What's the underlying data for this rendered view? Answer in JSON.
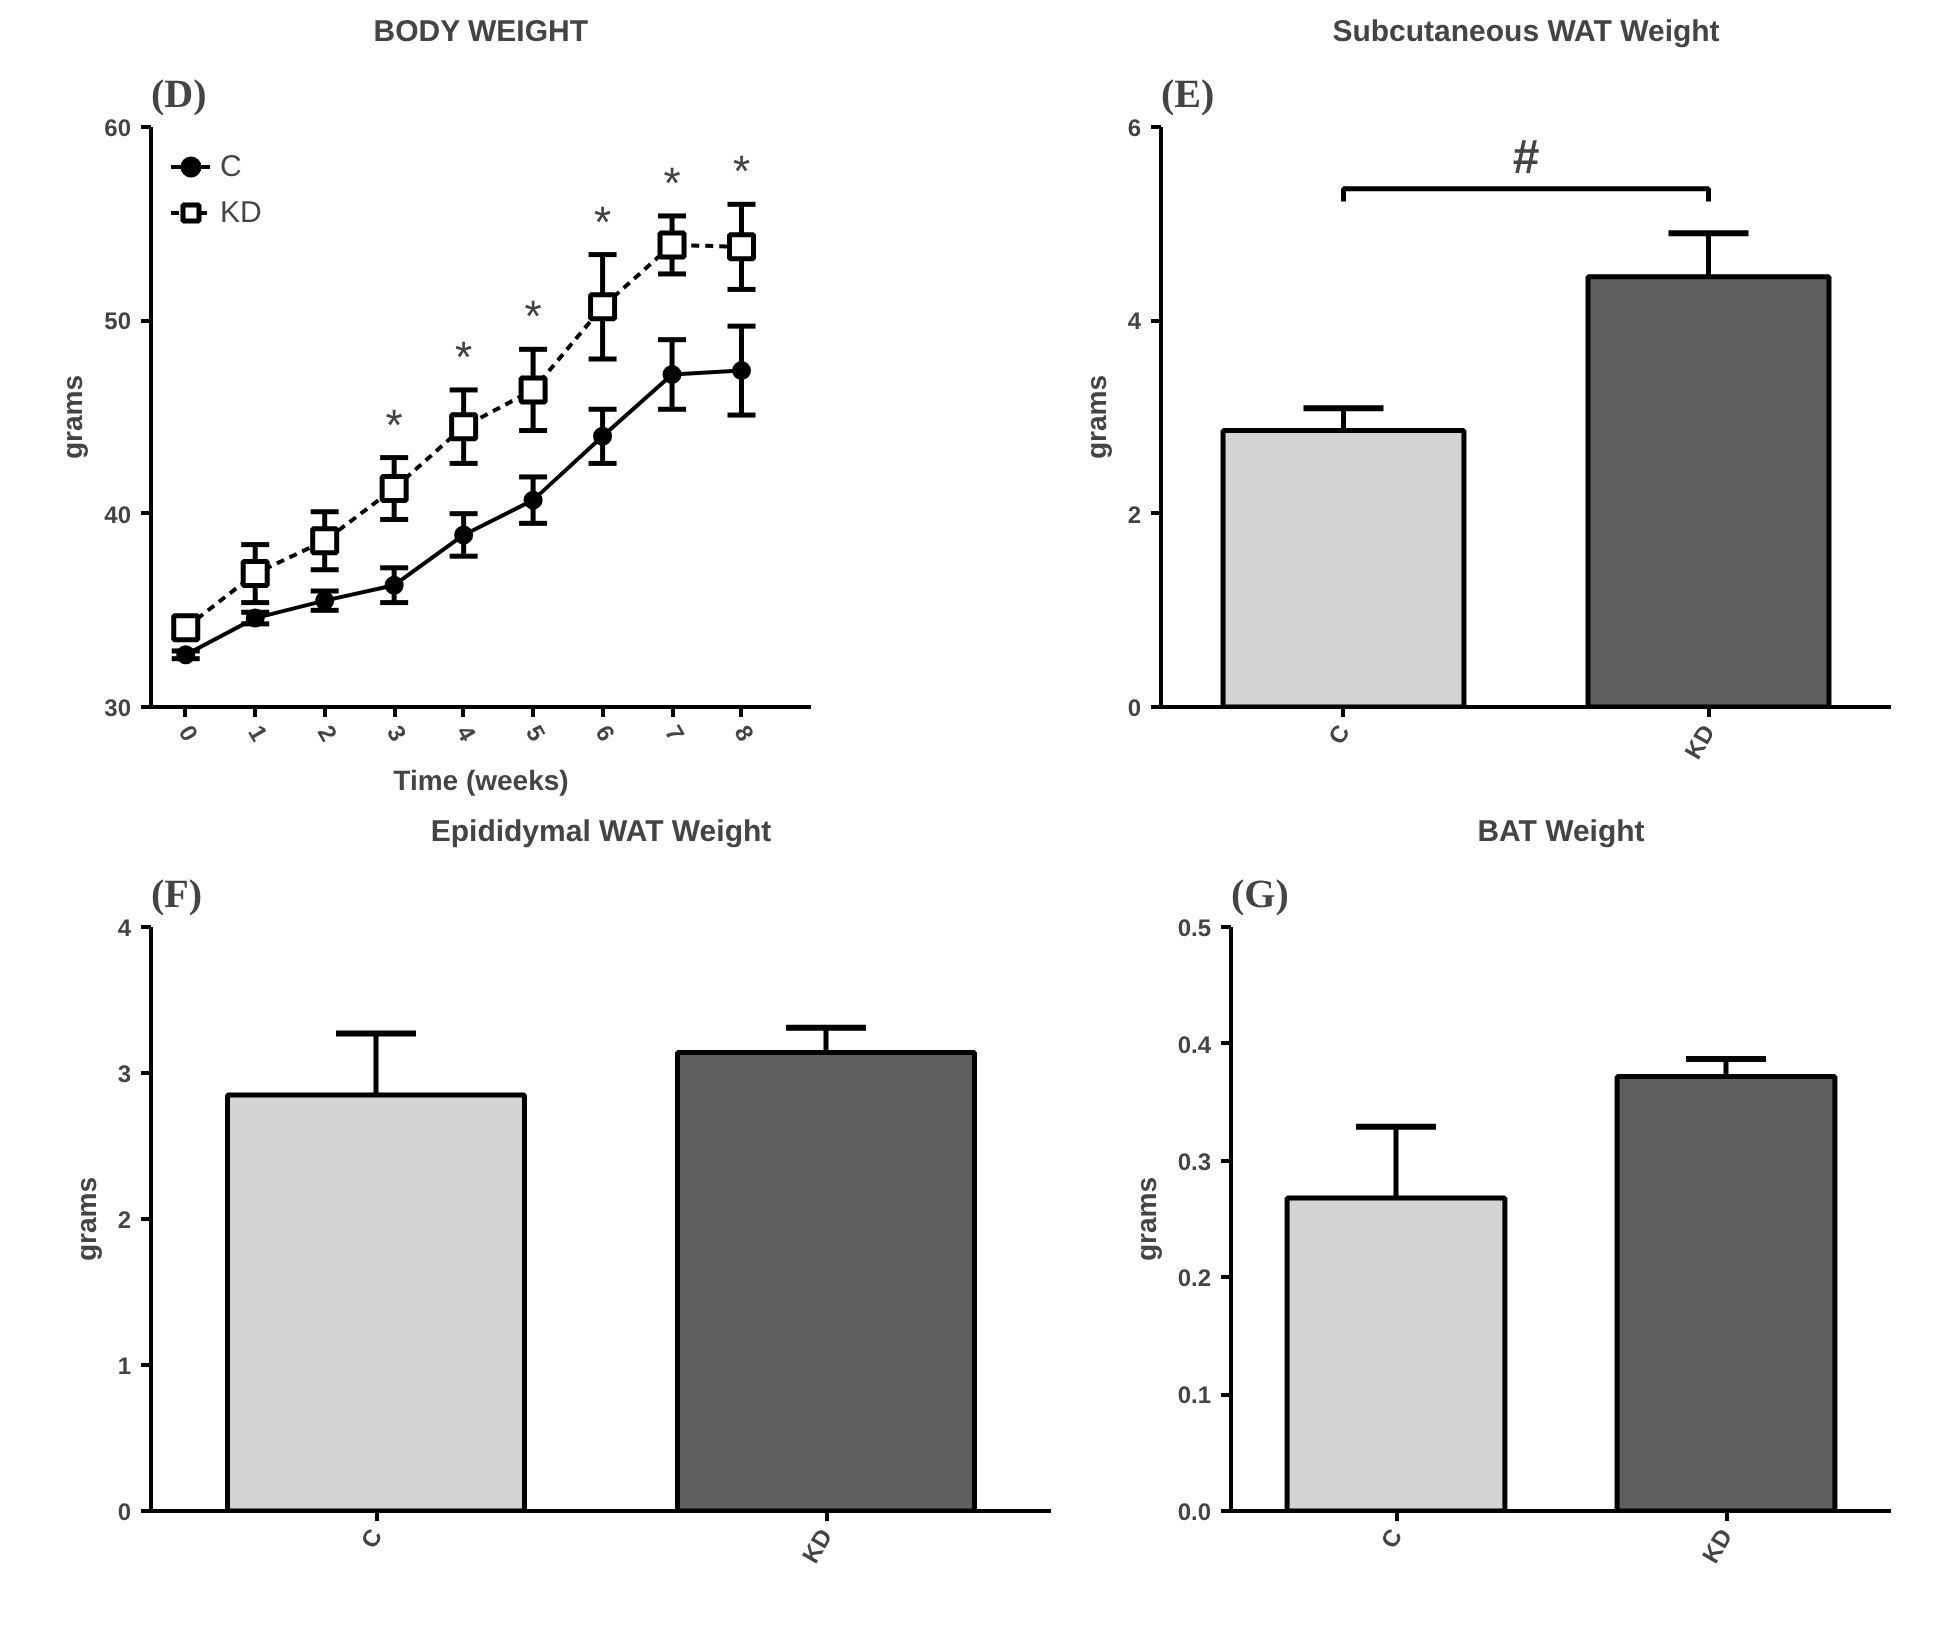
{
  "chart_data": [
    {
      "type": "line",
      "title": "BODY WEIGHT",
      "xlabel": "Time (weeks)",
      "ylabel": "grams",
      "x": [
        0,
        1,
        2,
        3,
        4,
        5,
        6,
        7,
        8
      ],
      "xlim": [
        -0.5,
        9
      ],
      "xticks": [
        0,
        1,
        2,
        3,
        4,
        5,
        6,
        7,
        8
      ],
      "ylim": [
        30,
        60
      ],
      "yticks": [
        30,
        40,
        50,
        60
      ],
      "grid": false,
      "legend": "top left",
      "series": [
        {
          "name": "C",
          "color": "#000000",
          "marker": "circle",
          "line_style": "solid",
          "values": [
            32.7,
            34.6,
            35.5,
            36.3,
            38.9,
            40.7,
            44.0,
            47.2,
            47.4
          ],
          "errors": [
            0.2,
            0.3,
            0.5,
            0.9,
            1.1,
            1.2,
            1.4,
            1.8,
            2.3
          ]
        },
        {
          "name": "KD",
          "color": "#000000",
          "marker": "square",
          "line_style": "dashed",
          "values": [
            34.1,
            36.9,
            38.6,
            41.3,
            44.5,
            46.4,
            50.7,
            53.9,
            53.8
          ],
          "errors": [
            0.4,
            1.5,
            1.5,
            1.6,
            1.9,
            2.1,
            2.7,
            1.5,
            2.2
          ]
        }
      ],
      "annotations": [
        "(D)",
        {
          "text": "*",
          "x": 3,
          "y": 42.9
        },
        {
          "text": "*",
          "x": 4,
          "y": 46.4
        },
        {
          "text": "*",
          "x": 5,
          "y": 48.5
        },
        {
          "text": "*",
          "x": 6,
          "y": 53.4
        },
        {
          "text": "*",
          "x": 7,
          "y": 55.4
        },
        {
          "text": "*",
          "x": 8,
          "y": 56.0
        }
      ]
    },
    {
      "type": "bar",
      "title": "Subcutaneous WAT Weight",
      "ylabel": "grams",
      "categories": [
        "C",
        "KD"
      ],
      "values": [
        2.86,
        4.45
      ],
      "colors": [
        "#d3d3d3",
        "#5f5f5f"
      ],
      "errors": [
        [
          2.86,
          3.09
        ],
        [
          4.45,
          4.9
        ]
      ],
      "ylim": [
        0,
        6
      ],
      "yticks": [
        0,
        2,
        4,
        6
      ],
      "grid": false,
      "annotations": [
        "(E)",
        "#"
      ]
    },
    {
      "type": "bar",
      "title": "Epididymal WAT Weight",
      "ylabel": "grams",
      "categories": [
        "C",
        "KD"
      ],
      "values": [
        2.85,
        3.14
      ],
      "colors": [
        "#d3d3d3",
        "#5f5f5f"
      ],
      "errors": [
        [
          2.85,
          3.27
        ],
        [
          3.14,
          3.31
        ]
      ],
      "ylim": [
        0,
        4
      ],
      "yticks": [
        0,
        1,
        2,
        3,
        4
      ],
      "grid": false,
      "annotations": [
        "(F)"
      ]
    },
    {
      "type": "bar",
      "title": "BAT Weight",
      "ylabel": "grams",
      "categories": [
        "C",
        "KD"
      ],
      "values": [
        0.268,
        0.372
      ],
      "colors": [
        "#d3d3d3",
        "#5f5f5f"
      ],
      "errors": [
        [
          0.268,
          0.329
        ],
        [
          0.372,
          0.387
        ]
      ],
      "ylim": [
        0,
        0.5
      ],
      "yticks": [
        {
          "value": 0,
          "label": "0.0"
        },
        0.1,
        0.2,
        0.3,
        0.4,
        0.5
      ],
      "grid": false,
      "annotations": [
        "(G)"
      ]
    }
  ]
}
